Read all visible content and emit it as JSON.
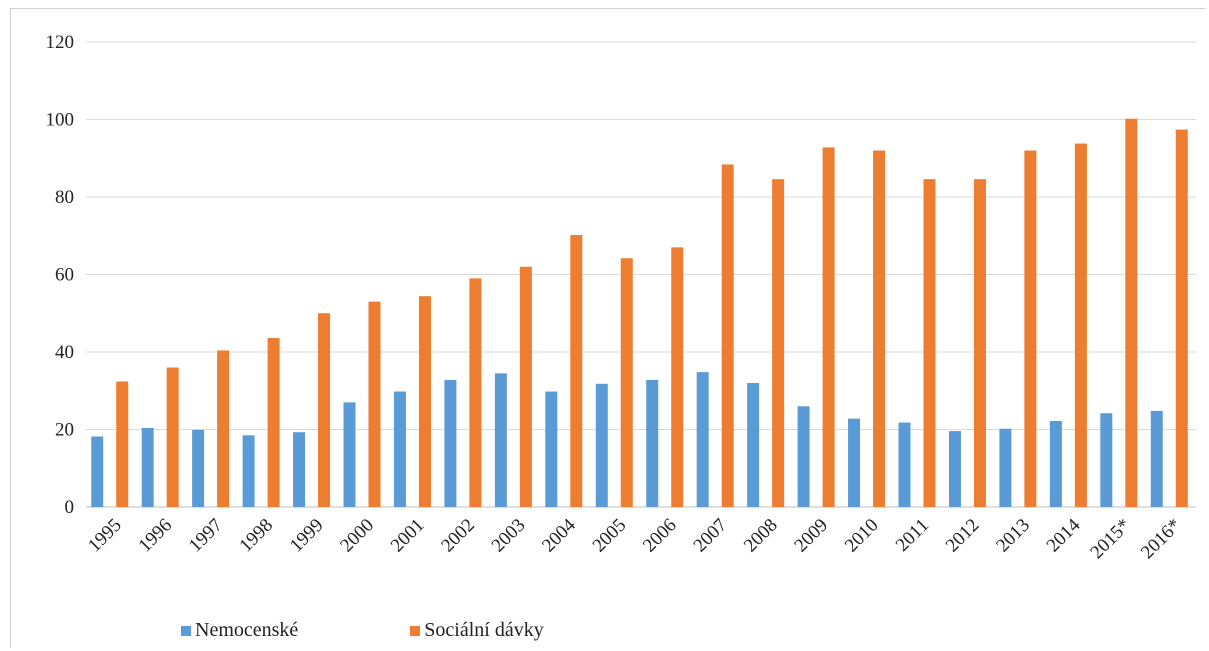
{
  "colors": {
    "nemocenske": "#5B9BD5",
    "socialni": "#ED7D31",
    "grid": "#d9d9d9"
  },
  "legend": {
    "items": [
      {
        "label": "Nemocenské",
        "color": "#5B9BD5"
      },
      {
        "label": "Sociální dávky",
        "color": "#ED7D31"
      }
    ],
    "placement": "bottom"
  },
  "chart_data": {
    "type": "bar",
    "title": "",
    "xlabel": "",
    "ylabel": "",
    "ylim": [
      0,
      120
    ],
    "yticks": [
      0,
      20,
      40,
      60,
      80,
      100,
      120
    ],
    "grid": true,
    "categories": [
      "1995",
      "1996",
      "1997",
      "1998",
      "1999",
      "2000",
      "2001",
      "2002",
      "2003",
      "2004",
      "2005",
      "2006",
      "2007",
      "2008",
      "2009",
      "2010",
      "2011",
      "2012",
      "2013",
      "2014",
      "2015*",
      "2016*"
    ],
    "series": [
      {
        "name": "Nemocenské",
        "values": [
          18.2,
          20.4,
          19.9,
          18.5,
          19.3,
          27.0,
          29.8,
          32.8,
          34.5,
          29.8,
          31.8,
          32.8,
          34.8,
          32.0,
          26.0,
          22.8,
          21.8,
          19.6,
          20.2,
          22.2,
          24.2,
          24.8
        ]
      },
      {
        "name": "Sociální dávky",
        "values": [
          32.4,
          36.0,
          40.4,
          43.6,
          50.0,
          53.0,
          54.4,
          59.0,
          62.0,
          70.2,
          64.2,
          67.0,
          88.4,
          84.6,
          92.8,
          92.0,
          84.6,
          84.6,
          92.0,
          93.8,
          100.2,
          97.4
        ]
      }
    ]
  }
}
